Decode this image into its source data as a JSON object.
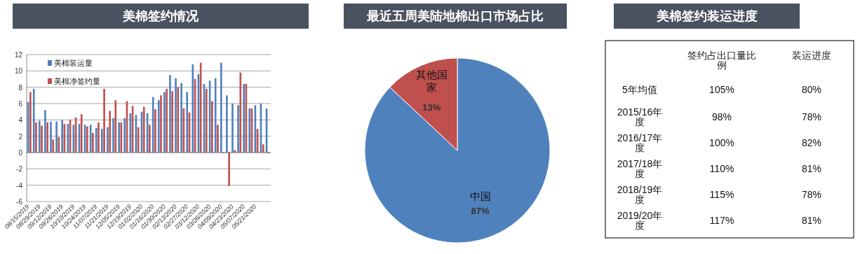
{
  "chart_data": [
    {
      "type": "bar",
      "title": "美棉签约情况",
      "categories": [
        "08/15/2019",
        null,
        "08/29/2019",
        null,
        "09/12/2019",
        null,
        "09/26/2019",
        null,
        "10/10/2019",
        null,
        "10/24/2019",
        null,
        "11/07/2019",
        null,
        "11/21/2019",
        null,
        "12/05/2019",
        null,
        "12/19/2019",
        null,
        "01/02/2020",
        null,
        "01/16/2020",
        null,
        "01/30/2020",
        null,
        "02/13/2020",
        null,
        "02/27/2020",
        null,
        "03/12/2020",
        null,
        "03/26/2020",
        null,
        "04/09/2020",
        null,
        "04/23/2020",
        null,
        "05/07/2020",
        null,
        "05/21/2020",
        null,
        null
      ],
      "series": [
        {
          "name": "美棉装运量",
          "color": "#4f81bd",
          "values": [
            6.2,
            7.8,
            3.9,
            5.2,
            3.8,
            3.8,
            4.0,
            3.5,
            3.4,
            3.5,
            3.4,
            3.4,
            3.0,
            2.9,
            3.1,
            4.2,
            3.7,
            4.2,
            4.8,
            4.6,
            5.0,
            4.8,
            6.8,
            6.4,
            7.4,
            9.5,
            9.1,
            8.5,
            7.4,
            10.8,
            9.6,
            8.4,
            8.8,
            9.1,
            11.0,
            7.0,
            6.0,
            5.8,
            8.4,
            5.4,
            5.8,
            6.0,
            5.4
          ]
        },
        {
          "name": "美棉净签约量",
          "color": "#c0504d",
          "values": [
            7.4,
            3.7,
            3.3,
            3.7,
            1.6,
            1.9,
            3.5,
            4.0,
            4.3,
            4.7,
            3.2,
            2.4,
            3.7,
            7.8,
            5.1,
            6.4,
            3.7,
            6.3,
            5.7,
            3.1,
            5.6,
            3.4,
            5.3,
            7.0,
            7.8,
            7.5,
            8.0,
            5.4,
            4.9,
            9.0,
            11.0,
            7.8,
            6.3,
            3.4,
            -0.1,
            -4.1,
            0.3,
            9.8,
            8.4,
            5.4,
            2.9,
            1.0,
            -0.1
          ]
        }
      ],
      "ylim": [
        -6,
        12
      ],
      "yticks": [
        -6,
        -4,
        -2,
        0,
        2,
        4,
        6,
        8,
        10,
        12
      ],
      "grid": "y",
      "legend": "top left"
    },
    {
      "type": "pie",
      "title": "最近五周美陆地棉出口市场占比",
      "categories": [
        "中国",
        "其他国家"
      ],
      "values": [
        87,
        13
      ],
      "colors": [
        "#4f81bd",
        "#c0504d"
      ],
      "value_labels": [
        "87%",
        "13%"
      ]
    },
    {
      "type": "other",
      "title": "美棉签约装运进度",
      "categories": [
        null,
        "签约占出口量比例",
        "装运进度"
      ],
      "y_categories": [
        "5年均值",
        "2015/16年度",
        "2016/17年度",
        "2017/18年度",
        "2018/19年度",
        "2019/20年度"
      ],
      "cell_labels": [
        [
          "105%",
          "80%"
        ],
        [
          "98%",
          "78%"
        ],
        [
          "100%",
          "82%"
        ],
        [
          "110%",
          "81%"
        ],
        [
          "115%",
          "78%"
        ],
        [
          "117%",
          "81%"
        ]
      ]
    }
  ]
}
